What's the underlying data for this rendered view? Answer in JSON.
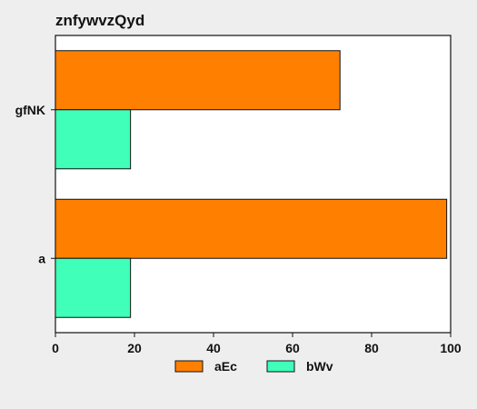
{
  "chart_data": {
    "type": "bar",
    "orientation": "horizontal",
    "title": "znfywvzQyd",
    "xlabel": "",
    "ylabel": "",
    "categories": [
      "gfNK",
      "a"
    ],
    "series": [
      {
        "name": "aEc",
        "values": [
          72,
          99
        ],
        "color": "#ff8000"
      },
      {
        "name": "bWv",
        "values": [
          19,
          19
        ],
        "color": "#40ffb8"
      }
    ],
    "xlim": [
      0,
      100
    ],
    "xticks": [
      0,
      20,
      40,
      60,
      80,
      100
    ],
    "grid": false,
    "legend": "bottom-center"
  }
}
